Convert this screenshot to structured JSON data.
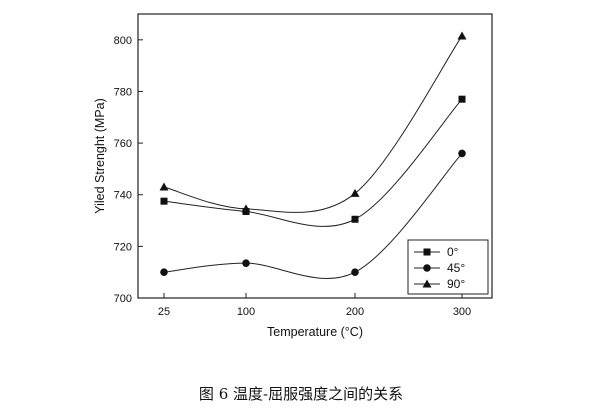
{
  "chart_data": {
    "type": "line",
    "categories": [
      "25",
      "100",
      "200",
      "300"
    ],
    "xlabel": "Temperature (°C)",
    "ylabel": "Yiled Strenght (MPa)",
    "ylim": [
      700,
      810
    ],
    "yticks": [
      700,
      720,
      740,
      760,
      780,
      800
    ],
    "series": [
      {
        "name": "0°",
        "marker": "square",
        "values": [
          737.5,
          733.5,
          730.5,
          777
        ]
      },
      {
        "name": "45°",
        "marker": "circle",
        "values": [
          710,
          713.5,
          710,
          756
        ]
      },
      {
        "name": "90°",
        "marker": "triangle",
        "values": [
          743,
          734.5,
          740.5,
          801.5
        ]
      }
    ],
    "legend_position": "bottom-right",
    "grid": false
  },
  "caption": "图 6 温度-屈服强度之间的关系"
}
